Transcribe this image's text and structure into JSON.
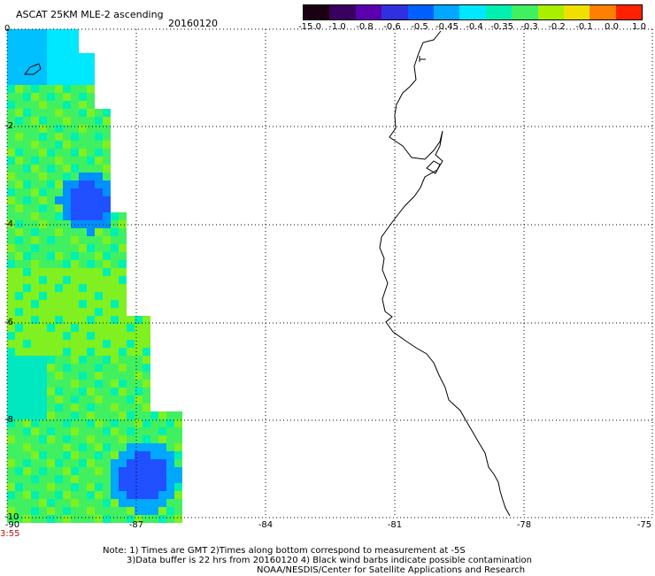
{
  "header": {
    "title": "ASCAT 25KM MLE-2 ascending",
    "date": "20160120"
  },
  "colorbar": {
    "labels": [
      "-15.0",
      "-1.0",
      "-0.8",
      "-0.6",
      "-0.5",
      "-0.45",
      "-0.4",
      "-0.35",
      "-0.3",
      "-0.2",
      "-0.1",
      "0.0",
      "1.0"
    ],
    "colors": [
      "#1a0010",
      "#3a0060",
      "#5a00b0",
      "#3030e0",
      "#0060ff",
      "#00a8ff",
      "#00e8ff",
      "#00f0b0",
      "#40f060",
      "#a8f000",
      "#f0e000",
      "#ff8000",
      "#ff2000"
    ]
  },
  "axes": {
    "lat_labels": [
      "0",
      "-2",
      "-4",
      "-6",
      "-8",
      "-10"
    ],
    "lon_labels": [
      "-90",
      "-87",
      "-84",
      "-81",
      "-78",
      "-75"
    ],
    "time_label": "3:55",
    "time_color": "#c01010"
  },
  "footer": {
    "line1": "Note: 1) Times are GMT 2)Times along bottom correspond to measurement at -5S",
    "line2": "3)Data buffer is 22 hrs from 20160120 4) Black wind barbs indicate possible contamination",
    "line3": "NOAA/NESDIS/Center for Satellite Applications and Research"
  }
}
